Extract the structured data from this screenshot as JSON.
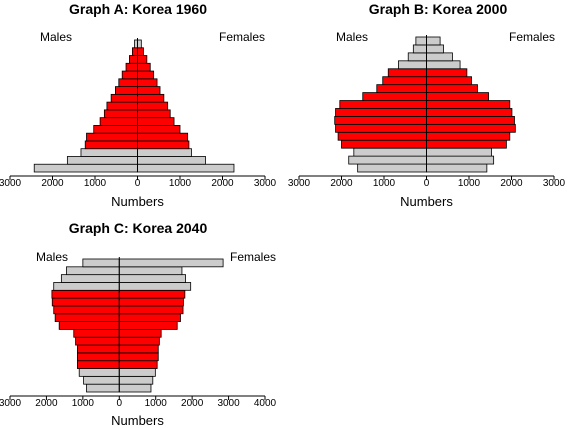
{
  "chart_data": [
    {
      "type": "bar",
      "title": "Graph A: Korea 1960",
      "xlabel": "Numbers",
      "left_label": "Males",
      "right_label": "Females",
      "xlim": [
        -3000,
        3000
      ],
      "x_ticks": [
        -3000,
        -2000,
        -1000,
        0,
        1000,
        2000,
        3000
      ],
      "x_tick_labels": [
        "3000",
        "2000",
        "1000",
        "0",
        "1000",
        "2000",
        "3000"
      ],
      "age_groups_bottom_to_top": 17,
      "series": [
        {
          "name": "Males",
          "values": [
            2430,
            1650,
            1330,
            1230,
            1200,
            1030,
            880,
            780,
            720,
            620,
            520,
            440,
            360,
            270,
            190,
            120,
            70
          ],
          "highlight": [
            false,
            false,
            false,
            true,
            true,
            true,
            true,
            true,
            true,
            true,
            true,
            true,
            true,
            true,
            true,
            true,
            false
          ]
        },
        {
          "name": "Females",
          "values": [
            2270,
            1600,
            1270,
            1210,
            1180,
            1000,
            860,
            770,
            710,
            620,
            530,
            460,
            380,
            300,
            220,
            140,
            90
          ],
          "highlight": [
            false,
            false,
            false,
            true,
            true,
            true,
            true,
            true,
            true,
            true,
            true,
            true,
            true,
            true,
            true,
            true,
            false
          ]
        }
      ]
    },
    {
      "type": "bar",
      "title": "Graph B: Korea  2000",
      "xlabel": "Numbers",
      "left_label": "Males",
      "right_label": "Females",
      "xlim": [
        -3000,
        3000
      ],
      "x_ticks": [
        -3000,
        -2000,
        -1000,
        0,
        1000,
        2000,
        3000
      ],
      "x_tick_labels": [
        "3000",
        "2000",
        "1000",
        "0",
        "1000",
        "2000",
        "3000"
      ],
      "age_groups_bottom_to_top": 17,
      "series": [
        {
          "name": "Males",
          "values": [
            1620,
            1830,
            1710,
            2000,
            2080,
            2140,
            2160,
            2140,
            2040,
            1500,
            1170,
            1030,
            900,
            660,
            430,
            310,
            250
          ],
          "highlight": [
            false,
            false,
            false,
            true,
            true,
            true,
            true,
            true,
            true,
            true,
            true,
            true,
            true,
            false,
            false,
            false,
            false
          ]
        },
        {
          "name": "Females",
          "values": [
            1420,
            1580,
            1530,
            1880,
            1960,
            2090,
            2070,
            2010,
            1960,
            1460,
            1200,
            1060,
            950,
            790,
            610,
            400,
            320
          ],
          "highlight": [
            false,
            false,
            false,
            true,
            true,
            true,
            true,
            true,
            true,
            true,
            true,
            true,
            true,
            false,
            false,
            false,
            false
          ]
        }
      ]
    },
    {
      "type": "bar",
      "title": "Graph C: Korea 2040",
      "xlabel": "Numbers",
      "left_label": "Males",
      "right_label": "Females",
      "xlim": [
        -3000,
        4000
      ],
      "x_ticks": [
        -3000,
        -2000,
        -1000,
        0,
        1000,
        2000,
        3000,
        4000
      ],
      "x_tick_labels": [
        "3000",
        "2000",
        "1000",
        "0",
        "1000",
        "2000",
        "3000",
        "4000"
      ],
      "age_groups_bottom_to_top": 17,
      "series": [
        {
          "name": "Males",
          "values": [
            900,
            980,
            1100,
            1150,
            1150,
            1150,
            1200,
            1250,
            1650,
            1760,
            1800,
            1840,
            1850,
            1800,
            1590,
            1450,
            1000
          ],
          "highlight": [
            false,
            false,
            false,
            true,
            true,
            true,
            true,
            true,
            true,
            true,
            true,
            true,
            true,
            false,
            false,
            false,
            false
          ]
        },
        {
          "name": "Females",
          "values": [
            870,
            920,
            990,
            1040,
            1070,
            1070,
            1100,
            1150,
            1590,
            1680,
            1750,
            1760,
            1800,
            1960,
            1820,
            1720,
            2850
          ],
          "highlight": [
            false,
            false,
            false,
            true,
            true,
            true,
            true,
            true,
            true,
            true,
            true,
            true,
            true,
            false,
            false,
            false,
            false
          ]
        }
      ]
    }
  ],
  "colors": {
    "highlight": "#ff0000",
    "base": "#cccccc",
    "outline": "#000000"
  }
}
